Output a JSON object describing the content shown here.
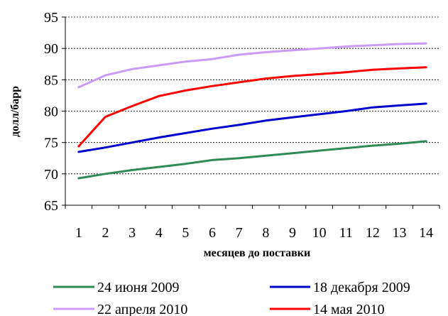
{
  "chart_data": {
    "type": "line",
    "xlabel": "месяцев до поставки",
    "ylabel": "долл/барр",
    "x": [
      1,
      2,
      3,
      4,
      5,
      6,
      7,
      8,
      9,
      10,
      11,
      12,
      13,
      14
    ],
    "xlim": [
      0.5,
      14.5
    ],
    "ylim": [
      65,
      95
    ],
    "yticks": [
      65,
      70,
      75,
      80,
      85,
      90,
      95
    ],
    "grid": true,
    "legend_position": "bottom",
    "series": [
      {
        "name": "24 июня 2009",
        "color": "#2e8b57",
        "values": [
          69.3,
          70.0,
          70.6,
          71.1,
          71.6,
          72.2,
          72.5,
          72.9,
          73.3,
          73.7,
          74.1,
          74.5,
          74.8,
          75.2
        ]
      },
      {
        "name": "18 декабря 2009",
        "color": "#0000cc",
        "values": [
          73.5,
          74.2,
          75.0,
          75.8,
          76.5,
          77.2,
          77.8,
          78.5,
          79.0,
          79.5,
          80.0,
          80.6,
          80.9,
          81.2
        ]
      },
      {
        "name": "22 апреля 2010",
        "color": "#c99cf7",
        "values": [
          83.8,
          85.7,
          86.7,
          87.3,
          87.9,
          88.3,
          89.0,
          89.4,
          89.7,
          90.0,
          90.3,
          90.5,
          90.7,
          90.8
        ]
      },
      {
        "name": "14 мая 2010",
        "color": "#ff0000",
        "values": [
          74.4,
          79.1,
          80.8,
          82.4,
          83.3,
          84.0,
          84.6,
          85.2,
          85.6,
          85.9,
          86.2,
          86.6,
          86.8,
          87.0
        ]
      }
    ]
  }
}
